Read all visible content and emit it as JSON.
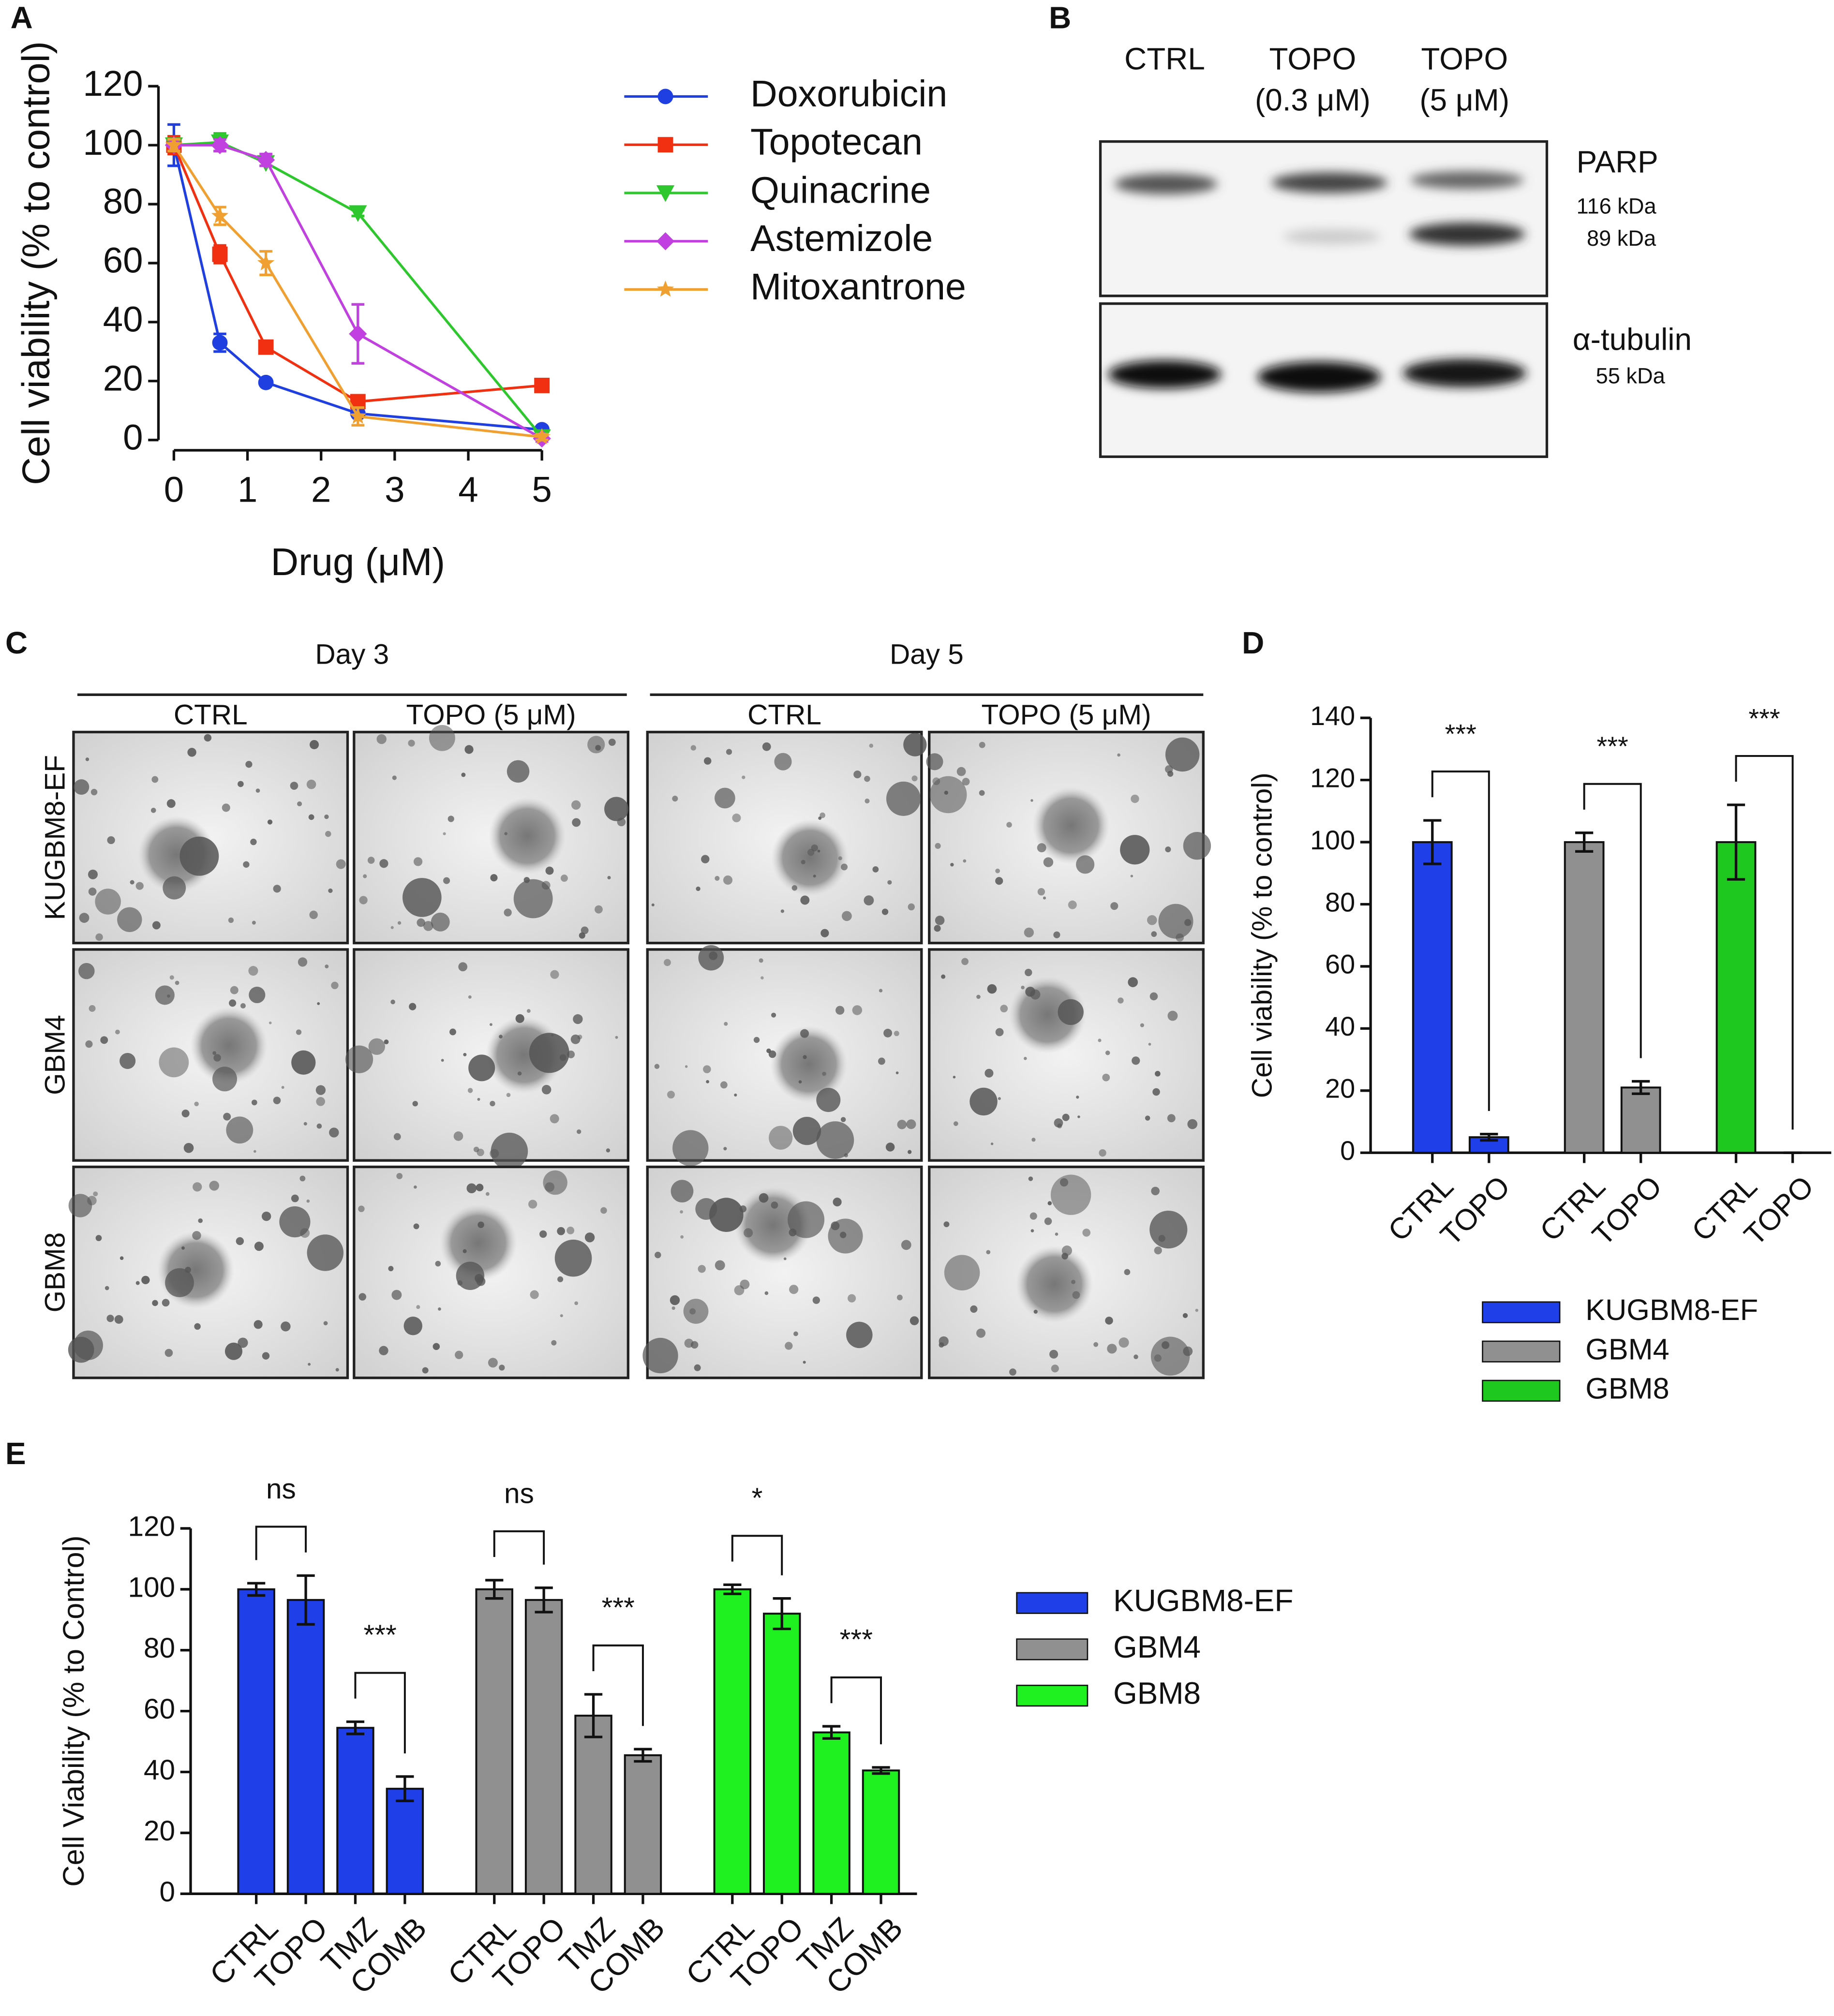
{
  "panel_labels": [
    "A",
    "B",
    "C",
    "D",
    "E"
  ],
  "blot": {
    "columns": [
      [
        "CTRL"
      ],
      [
        "TOPO",
        "(0.3 μM)"
      ],
      [
        "TOPO",
        "(5 μM)"
      ]
    ],
    "rows": [
      {
        "name": "PARP",
        "sizes": [
          "116 kDa",
          "89 kDa"
        ]
      },
      {
        "name": "α-tubulin",
        "sizes": [
          "55 kDa"
        ]
      }
    ]
  },
  "micrographs": {
    "days": [
      "Day 3",
      "Day 5"
    ],
    "conditions": [
      "CTRL",
      "TOPO (5 μM)"
    ],
    "cell_lines": [
      "KUGBM8-EF",
      "GBM4",
      "GBM8"
    ]
  },
  "chart_data": [
    {
      "type": "line",
      "x_label": "Drug (μM)",
      "y_label": "Cell viability (% to control)",
      "x": [
        0,
        0.625,
        1.25,
        2.5,
        5
      ],
      "xlim": [
        0,
        5
      ],
      "xticks": [
        0,
        1,
        2,
        3,
        4,
        5
      ],
      "ylim": [
        0,
        120
      ],
      "yticks": [
        0,
        20,
        40,
        60,
        80,
        100,
        120
      ],
      "legend": "right",
      "series": [
        {
          "name": "Doxorubicin",
          "color": "#1f3fe0",
          "marker": "circle",
          "values": [
            100,
            33,
            19.5,
            9,
            3.5
          ],
          "errors": [
            7,
            3,
            1,
            1,
            1
          ]
        },
        {
          "name": "Topotecan",
          "color": "#f03010",
          "marker": "square",
          "values": [
            100,
            63,
            31.5,
            13,
            18.5
          ],
          "errors": [
            3,
            3,
            2,
            2,
            1
          ]
        },
        {
          "name": "Quinacrine",
          "color": "#2ec82e",
          "marker": "triangle-down",
          "values": [
            100,
            101,
            94,
            77,
            1
          ],
          "errors": [
            2,
            3,
            1,
            1,
            1
          ]
        },
        {
          "name": "Astemizole",
          "color": "#c040e0",
          "marker": "diamond",
          "values": [
            100,
            100,
            95,
            36,
            0.5
          ],
          "errors": [
            2,
            2,
            2,
            10,
            1
          ]
        },
        {
          "name": "Mitoxantrone",
          "color": "#f0a030",
          "marker": "star",
          "values": [
            100,
            76,
            60,
            8,
            1
          ],
          "errors": [
            2,
            3,
            4,
            3,
            1
          ]
        }
      ]
    },
    {
      "type": "bar",
      "y_label": "Cell viability (% to control)",
      "categories": [
        "CTRL",
        "TOPO"
      ],
      "ylim": [
        0,
        140
      ],
      "yticks": [
        0,
        20,
        40,
        60,
        80,
        100,
        120,
        140
      ],
      "legend": "bottom",
      "series": [
        {
          "name": "KUGBM8-EF",
          "color": "#1f3fe8",
          "values": [
            100,
            5
          ],
          "errors": [
            7,
            1
          ],
          "significance": [
            "***"
          ]
        },
        {
          "name": "GBM4",
          "color": "#909090",
          "values": [
            100,
            21
          ],
          "errors": [
            3,
            2
          ],
          "significance": [
            "***"
          ]
        },
        {
          "name": "GBM8",
          "color": "#1fc81f",
          "values": [
            100,
            0
          ],
          "errors": [
            12,
            0
          ],
          "significance": [
            "***"
          ]
        }
      ]
    },
    {
      "type": "bar",
      "y_label": "Cell Viability (% to Control)",
      "categories": [
        "CTRL",
        "TOPO",
        "TMZ",
        "COMB"
      ],
      "ylim": [
        0,
        120
      ],
      "yticks": [
        0,
        20,
        40,
        60,
        80,
        100,
        120
      ],
      "legend": "right",
      "series": [
        {
          "name": "KUGBM8-EF",
          "color": "#1f3fe8",
          "values": [
            100,
            96.5,
            54.5,
            34.5
          ],
          "errors": [
            2,
            8,
            2,
            4
          ],
          "significance": [
            "ns",
            "***"
          ]
        },
        {
          "name": "GBM4",
          "color": "#909090",
          "values": [
            100,
            96.5,
            58.5,
            45.5
          ],
          "errors": [
            3,
            4,
            7,
            2
          ],
          "significance": [
            "ns",
            "***"
          ]
        },
        {
          "name": "GBM8",
          "color": "#1ff01f",
          "values": [
            100,
            92,
            53,
            40.5
          ],
          "errors": [
            1.5,
            5,
            2,
            1
          ],
          "significance": [
            "*",
            "***"
          ]
        }
      ]
    }
  ]
}
